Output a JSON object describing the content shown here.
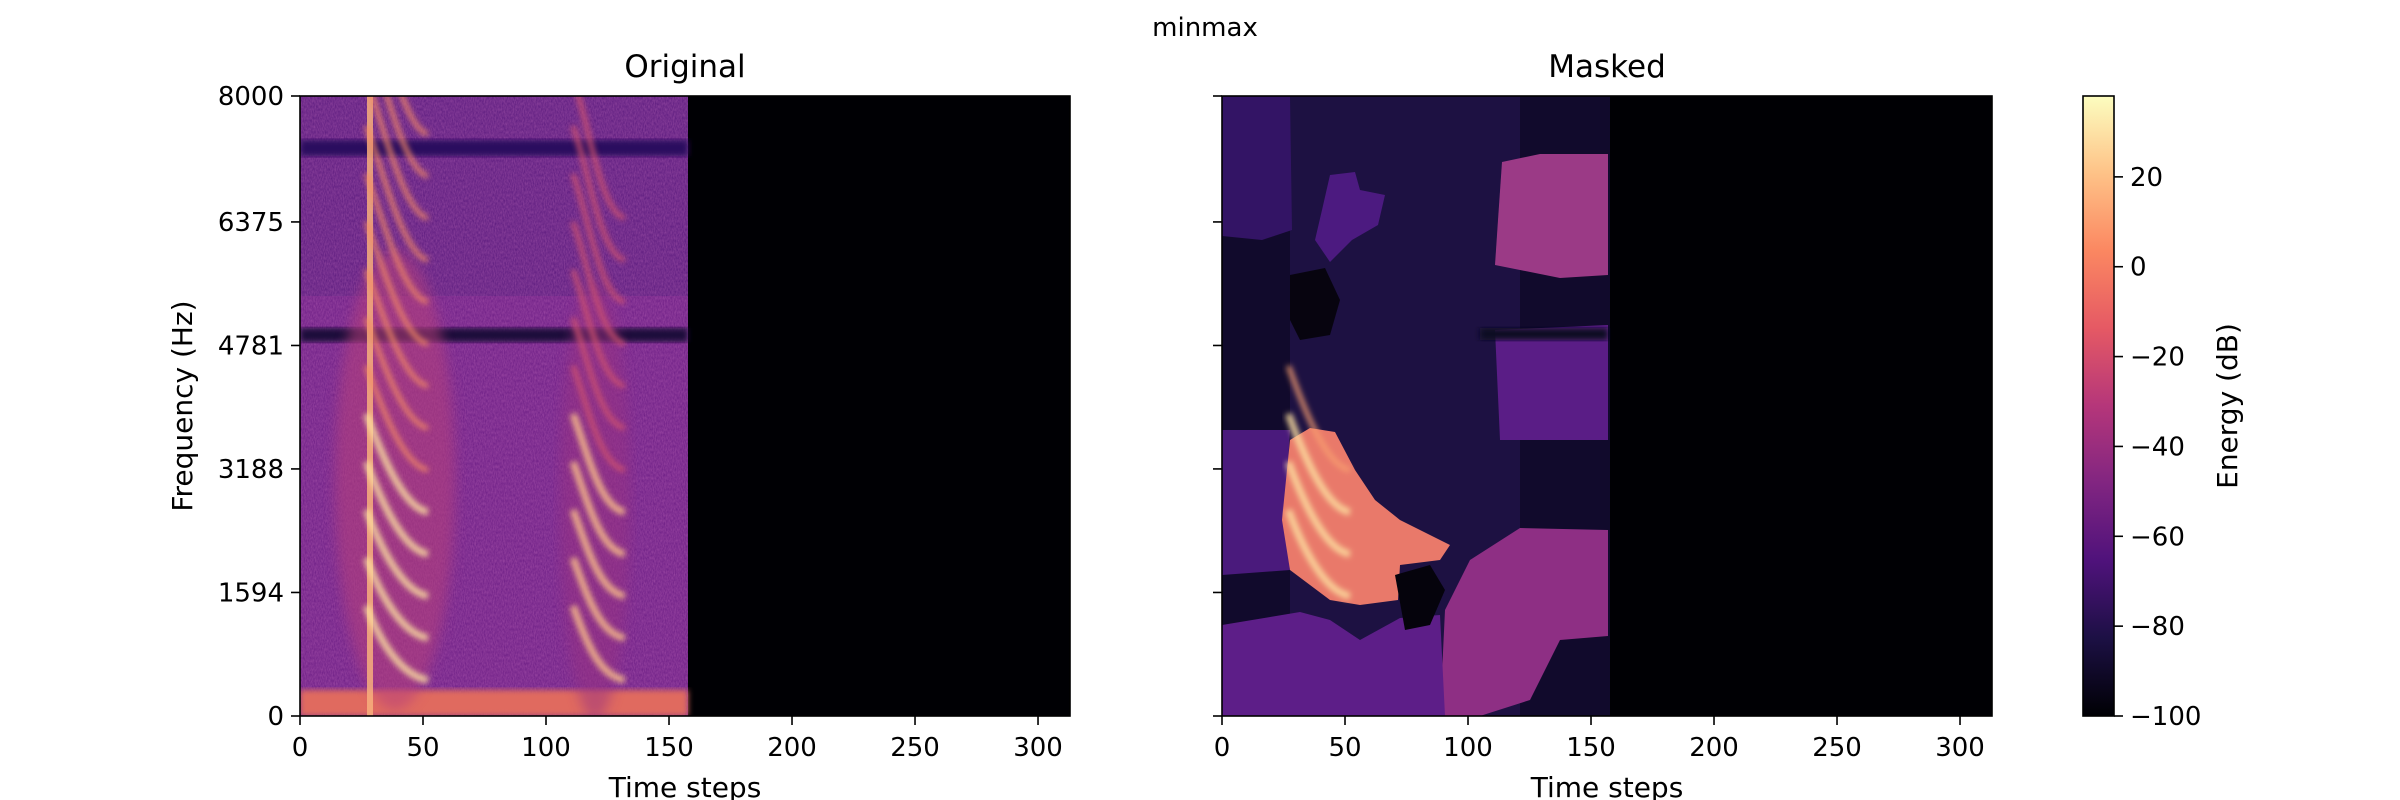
{
  "figure": {
    "title": "minmax"
  },
  "chart_data": [
    {
      "type": "heatmap",
      "title": "Original",
      "xlabel": "Time steps",
      "ylabel": "Frequency (Hz)",
      "xlim": [
        0,
        313
      ],
      "ylim": [
        0,
        8000
      ],
      "xticks": [
        0,
        50,
        100,
        150,
        200,
        250,
        300
      ],
      "yticks": [
        0,
        1594,
        3188,
        4781,
        6375,
        8000
      ],
      "signal_end_time_step": 157,
      "silence_energy_db": -100,
      "features": [
        {
          "name": "broadband-onset",
          "time": 28,
          "energy_db": 20
        },
        {
          "name": "harmonic-sweep-1",
          "time_range": [
            28,
            55
          ],
          "energy_db": 10
        },
        {
          "name": "harmonic-sweep-2",
          "time_range": [
            108,
            130
          ],
          "energy_db": 0
        },
        {
          "name": "low-band-floor",
          "freq_range": [
            0,
            200
          ],
          "energy_db": -10
        },
        {
          "name": "notch",
          "freq": 4850,
          "energy_db": -85
        },
        {
          "name": "notch",
          "freq": 7350,
          "energy_db": -75
        }
      ]
    },
    {
      "type": "heatmap",
      "title": "Masked",
      "xlabel": "Time steps",
      "ylabel": "",
      "xlim": [
        0,
        313
      ],
      "ylim": [
        0,
        8000
      ],
      "xticks": [
        0,
        50,
        100,
        150,
        200,
        250,
        300
      ],
      "yticks": [
        0,
        1594,
        3188,
        4781,
        6375,
        8000
      ],
      "signal_end_time_step": 157,
      "masking": "superpixel regions retained/masked",
      "visible_regions": [
        {
          "time_range": [
            25,
            92
          ],
          "freq_range": [
            1000,
            3700
          ],
          "energy_db": 10
        },
        {
          "time_range": [
            110,
            157
          ],
          "freq_range": [
            5400,
            7300
          ],
          "energy_db": -40
        },
        {
          "time_range": [
            95,
            157
          ],
          "freq_range": [
            300,
            2700
          ],
          "energy_db": -50
        }
      ]
    }
  ],
  "colorbar": {
    "label": "Energy (dB)",
    "min": -100,
    "max": 38,
    "ticks": [
      20,
      0,
      -20,
      -40,
      -60,
      -80,
      -100
    ],
    "tick_labels": [
      "20",
      "0",
      "−20",
      "−40",
      "−60",
      "−80",
      "−100"
    ],
    "colormap": "magma",
    "colors": [
      "#000004",
      "#1c1044",
      "#4f127b",
      "#812581",
      "#b5367a",
      "#e55964",
      "#fb8761",
      "#fec287",
      "#fcfdbf"
    ]
  }
}
